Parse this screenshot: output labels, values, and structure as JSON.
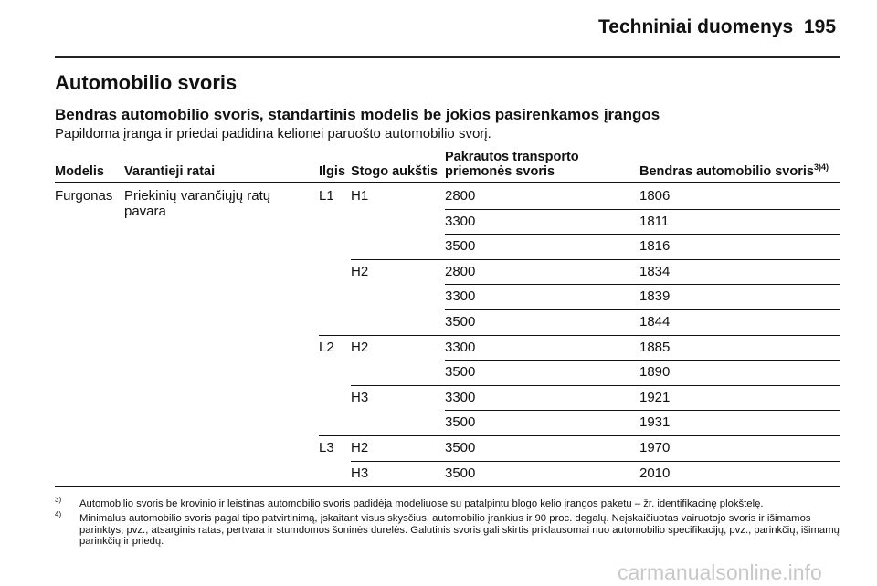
{
  "header": {
    "title": "Techniniai duomenys",
    "page": "195"
  },
  "section": {
    "title": "Automobilio svoris",
    "subtitle": "Bendras automobilio svoris, standartinis modelis be jokios pasirenkamos įrangos",
    "note": "Papildoma įranga ir priedai padidina kelionei paruošto automobilio svorį."
  },
  "table": {
    "columns": [
      {
        "text": "Modelis"
      },
      {
        "text": "Varantieji ratai"
      },
      {
        "text": "Ilgis"
      },
      {
        "text": "Stogo aukštis"
      },
      {
        "text": "Pakrautos transporto priemonės svoris"
      },
      {
        "text": "Bendras automobilio svoris",
        "sup": "3)4)"
      }
    ],
    "rows": [
      {
        "model": "Furgonas",
        "drive": "Priekinių varančiųjų ratų pavara",
        "length": "L1",
        "roof": "H1",
        "payload": 2800,
        "total": 1806
      },
      {
        "payload": 3300,
        "total": 1811
      },
      {
        "payload": 3500,
        "total": 1816
      },
      {
        "roof": "H2",
        "payload": 2800,
        "total": 1834
      },
      {
        "payload": 3300,
        "total": 1839
      },
      {
        "payload": 3500,
        "total": 1844
      },
      {
        "length": "L2",
        "roof": "H2",
        "payload": 3300,
        "total": 1885
      },
      {
        "payload": 3500,
        "total": 1890
      },
      {
        "roof": "H3",
        "payload": 3300,
        "total": 1921
      },
      {
        "payload": 3500,
        "total": 1931
      },
      {
        "length": "L3",
        "roof": "H2",
        "payload": 3500,
        "total": 1970
      },
      {
        "roof": "H3",
        "payload": 3500,
        "total": 2010
      }
    ]
  },
  "footnotes": [
    {
      "mark": "3)",
      "text": "Automobilio svoris be krovinio ir leistinas automobilio svoris padidėja modeliuose su patalpintu blogo kelio įrangos paketu – žr. identifikacinę plokštelę."
    },
    {
      "mark": "4)",
      "text": "Minimalus automobilio svoris pagal tipo patvirtinimą, įskaitant visus skysčius, automobilio įrankius ir 90 proc. degalų. Neįskaičiuotas vairuotojo svoris ir išimamos parinktys, pvz., atsarginis ratas, pertvara ir stumdomos šoninės durelės. Galutinis svoris gali skirtis priklausomai nuo automobilio specifikacijų, pvz., parinkčių, išimamų parinkčių ir priedų."
    }
  ],
  "watermark": "carmanualsonline.info"
}
